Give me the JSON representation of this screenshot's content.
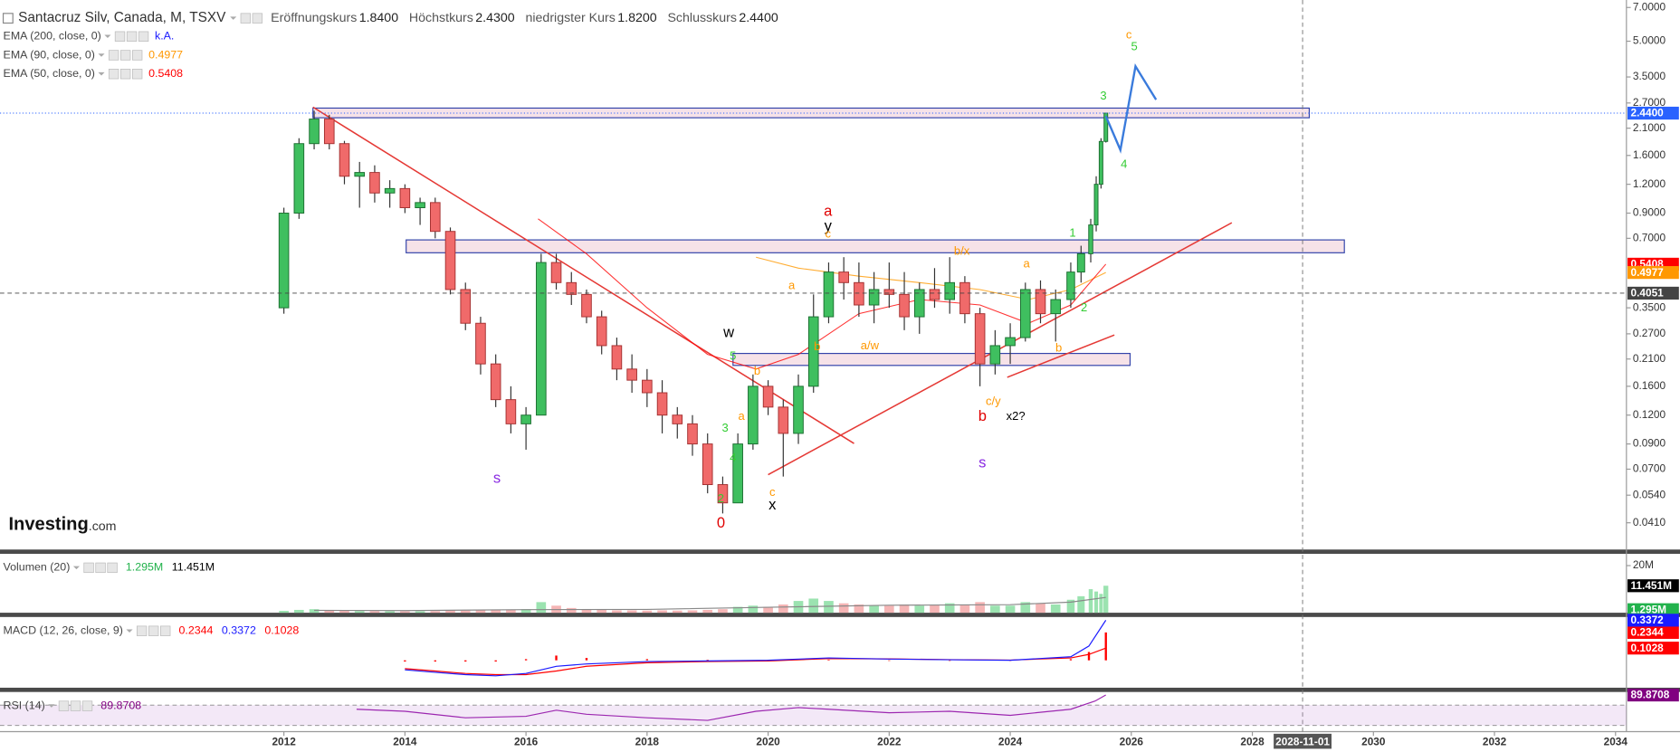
{
  "chart_data": {
    "type": "candlestick",
    "title": "Santacruz Silv, Canada, M, TSXV",
    "header": [
      {
        "name": "Eröffnungskurs",
        "label": "1.8400"
      },
      {
        "name": "Höchstkurs",
        "label": "2.4300"
      },
      {
        "name": "niedrigster Kurs",
        "label": "1.8200"
      },
      {
        "name": "Schlusskurs",
        "label": "2.4400"
      }
    ],
    "watermark": [
      "Investing",
      ".com"
    ],
    "up_color": "#3fbf5f",
    "down_color": "#f06a6a",
    "x": [
      2012.0,
      2012.25,
      2012.5,
      2012.75,
      2013.0,
      2013.25,
      2013.5,
      2013.75,
      2014.0,
      2014.25,
      2014.5,
      2014.75,
      2015.0,
      2015.25,
      2015.5,
      2015.75,
      2016.0,
      2016.25,
      2016.5,
      2016.75,
      2017.0,
      2017.25,
      2017.5,
      2017.75,
      2018.0,
      2018.25,
      2018.5,
      2018.75,
      2019.0,
      2019.25,
      2019.5,
      2019.75,
      2020.0,
      2020.25,
      2020.5,
      2020.75,
      2021.0,
      2021.25,
      2021.5,
      2021.75,
      2022.0,
      2022.25,
      2022.5,
      2022.75,
      2023.0,
      2023.25,
      2023.5,
      2023.75,
      2024.0,
      2024.25,
      2024.5,
      2024.75,
      2025.0,
      2025.17,
      2025.33,
      2025.42,
      2025.5,
      2025.58
    ],
    "open": [
      0.35,
      0.9,
      1.8,
      2.3,
      1.8,
      1.3,
      1.35,
      1.1,
      1.15,
      0.95,
      1.0,
      0.75,
      0.42,
      0.3,
      0.2,
      0.14,
      0.11,
      0.12,
      0.55,
      0.45,
      0.4,
      0.32,
      0.24,
      0.19,
      0.17,
      0.15,
      0.12,
      0.11,
      0.09,
      0.06,
      0.05,
      0.09,
      0.16,
      0.13,
      0.1,
      0.16,
      0.32,
      0.5,
      0.45,
      0.36,
      0.42,
      0.4,
      0.32,
      0.42,
      0.38,
      0.45,
      0.33,
      0.2,
      0.24,
      0.26,
      0.42,
      0.33,
      0.38,
      0.5,
      0.6,
      0.8,
      1.2,
      1.84
    ],
    "high": [
      0.95,
      1.9,
      2.5,
      2.4,
      1.85,
      1.5,
      1.45,
      1.25,
      1.2,
      1.05,
      1.05,
      0.78,
      0.45,
      0.32,
      0.22,
      0.16,
      0.13,
      0.6,
      0.6,
      0.5,
      0.42,
      0.34,
      0.26,
      0.22,
      0.19,
      0.17,
      0.13,
      0.12,
      0.1,
      0.065,
      0.1,
      0.18,
      0.17,
      0.14,
      0.18,
      0.4,
      0.55,
      0.58,
      0.55,
      0.5,
      0.55,
      0.5,
      0.45,
      0.52,
      0.58,
      0.48,
      0.35,
      0.28,
      0.3,
      0.45,
      0.46,
      0.42,
      0.55,
      0.65,
      0.85,
      1.3,
      1.9,
      2.43
    ],
    "low": [
      0.33,
      0.85,
      1.7,
      1.7,
      1.2,
      0.95,
      1.0,
      0.95,
      0.9,
      0.8,
      0.7,
      0.4,
      0.28,
      0.18,
      0.13,
      0.1,
      0.085,
      0.12,
      0.42,
      0.36,
      0.3,
      0.22,
      0.17,
      0.15,
      0.13,
      0.1,
      0.095,
      0.08,
      0.055,
      0.045,
      0.05,
      0.085,
      0.12,
      0.065,
      0.09,
      0.15,
      0.3,
      0.38,
      0.32,
      0.3,
      0.35,
      0.28,
      0.27,
      0.35,
      0.33,
      0.3,
      0.16,
      0.18,
      0.2,
      0.25,
      0.3,
      0.25,
      0.35,
      0.45,
      0.55,
      0.75,
      1.15,
      1.82
    ],
    "close": [
      0.9,
      1.8,
      2.3,
      1.8,
      1.3,
      1.35,
      1.1,
      1.15,
      0.95,
      1.0,
      0.75,
      0.42,
      0.3,
      0.2,
      0.14,
      0.11,
      0.12,
      0.55,
      0.45,
      0.4,
      0.32,
      0.24,
      0.19,
      0.17,
      0.15,
      0.12,
      0.11,
      0.09,
      0.06,
      0.05,
      0.09,
      0.16,
      0.13,
      0.1,
      0.16,
      0.32,
      0.5,
      0.45,
      0.36,
      0.42,
      0.4,
      0.32,
      0.42,
      0.38,
      0.45,
      0.33,
      0.2,
      0.24,
      0.26,
      0.42,
      0.33,
      0.38,
      0.5,
      0.6,
      0.8,
      1.2,
      1.84,
      2.44
    ],
    "xlim": [
      2007.31,
      2034.18
    ],
    "xticks": [
      2012,
      2014,
      2016,
      2018,
      2020,
      2022,
      2024,
      2026,
      2028,
      2030,
      2032,
      2034
    ],
    "ylim": [
      0.0314,
      7.54
    ],
    "log_y": true,
    "grid": false,
    "yticks": [
      {
        "value": 7,
        "label": "7.0000"
      },
      {
        "value": 5,
        "label": "5.0000"
      },
      {
        "value": 3.5,
        "label": "3.5000"
      },
      {
        "value": 2.7,
        "label": "2.7000"
      },
      {
        "value": 2.1,
        "label": "2.1000"
      },
      {
        "value": 1.6,
        "label": "1.6000"
      },
      {
        "value": 1.2,
        "label": "1.2000"
      },
      {
        "value": 0.9,
        "label": "0.9000"
      },
      {
        "value": 0.7,
        "label": "0.7000"
      },
      {
        "value": 0.35,
        "label": "0.3500"
      },
      {
        "value": 0.27,
        "label": "0.2700"
      },
      {
        "value": 0.21,
        "label": "0.2100"
      },
      {
        "value": 0.16,
        "label": "0.1600"
      },
      {
        "value": 0.12,
        "label": "0.1200"
      },
      {
        "value": 0.09,
        "label": "0.0900"
      },
      {
        "value": 0.07,
        "label": "0.0700"
      },
      {
        "value": 0.054,
        "label": "0.0540"
      },
      {
        "value": 0.041,
        "label": "0.0410"
      }
    ],
    "indicators": [
      {
        "name": "EMA (200, close, 0)",
        "label": "k.A.",
        "color": "#1a1aff"
      },
      {
        "name": "EMA (90, close, 0)",
        "label": "0.4977",
        "color": "#ff9800",
        "x": [
          2019.8,
          2020.5,
          2021.5,
          2022.5,
          2023.5,
          2024.3,
          2025.0,
          2025.58
        ],
        "values": [
          0.58,
          0.52,
          0.48,
          0.45,
          0.42,
          0.38,
          0.42,
          0.4977
        ]
      },
      {
        "name": "EMA (50, close, 0)",
        "label": "0.5408",
        "color": "#ff0000",
        "x": [
          2016.2,
          2017.0,
          2018.0,
          2019.0,
          2019.8,
          2020.5,
          2021.5,
          2022.5,
          2023.5,
          2024.3,
          2025.0,
          2025.58
        ],
        "values": [
          0.85,
          0.6,
          0.35,
          0.22,
          0.19,
          0.22,
          0.33,
          0.38,
          0.36,
          0.3,
          0.36,
          0.5408
        ]
      }
    ],
    "zones": [
      {
        "x": [
          2012.48,
          2028.94
        ],
        "values": [
          2.566,
          2.33
        ]
      },
      {
        "x": [
          2014.02,
          2029.52
        ],
        "values": [
          0.689,
          0.606
        ]
      },
      {
        "x": [
          2019.42,
          2025.98
        ],
        "values": [
          0.222,
          0.197
        ]
      }
    ],
    "trendlines": [
      {
        "x": [
          2012.48,
          2021.42
        ],
        "values": [
          2.59,
          0.0904
        ]
      },
      {
        "x": [
          2020.0,
          2027.66
        ],
        "values": [
          0.0663,
          0.818
        ]
      },
      {
        "x": [
          2023.95,
          2025.72
        ],
        "values": [
          0.175,
          0.267
        ]
      }
    ],
    "projection": {
      "color": "#3a7bdc",
      "x": [
        2025.58,
        2025.82,
        2026.07,
        2026.41
      ],
      "values": [
        2.37,
        1.69,
        3.89,
        2.79
      ]
    },
    "annotations": [
      {
        "text": "s",
        "x": 2015.52,
        "y": 0.0636,
        "color": "#8a2be2"
      },
      {
        "text": "0",
        "x": 2019.22,
        "y": 0.0406,
        "color": "#e00000"
      },
      {
        "text": "c",
        "x": 2020.07,
        "y": 0.0554,
        "color": "#ff9800"
      },
      {
        "text": "x",
        "x": 2020.07,
        "y": 0.0486,
        "color": "#000000"
      },
      {
        "text": "w",
        "x": 2019.35,
        "y": 0.272,
        "color": "#000000"
      },
      {
        "text": "a",
        "x": 2020.99,
        "y": 0.91,
        "color": "#e00000"
      },
      {
        "text": "y",
        "x": 2020.99,
        "y": 0.785,
        "color": "#000000"
      },
      {
        "text": "c",
        "x": 2020.99,
        "y": 0.726,
        "color": "#ff9800"
      },
      {
        "text": "b/x",
        "x": 2023.2,
        "y": 0.613,
        "color": "#ff9800"
      },
      {
        "text": "a/w",
        "x": 2021.68,
        "y": 0.239,
        "color": "#ff9800"
      },
      {
        "text": "c/y",
        "x": 2023.72,
        "y": 0.137,
        "color": "#ff9800"
      },
      {
        "text": "b",
        "x": 2023.54,
        "y": 0.118,
        "color": "#e00000"
      },
      {
        "text": "x2?",
        "x": 2024.09,
        "y": 0.118,
        "color": "#000000"
      },
      {
        "text": "s",
        "x": 2023.54,
        "y": 0.074,
        "color": "#8a2be2"
      },
      {
        "text": "3",
        "x": 2025.54,
        "y": 2.88,
        "color": "#33cc33"
      },
      {
        "text": "c",
        "x": 2025.96,
        "y": 5.3,
        "color": "#ff9800"
      },
      {
        "text": "5",
        "x": 2026.05,
        "y": 4.71,
        "color": "#33cc33"
      },
      {
        "text": "4",
        "x": 2025.88,
        "y": 1.456,
        "color": "#33cc33"
      },
      {
        "text": "1",
        "x": 2025.03,
        "y": 0.735,
        "color": "#33cc33"
      },
      {
        "text": "2",
        "x": 2025.22,
        "y": 0.348,
        "color": "#33cc33"
      },
      {
        "text": "a",
        "x": 2024.27,
        "y": 0.539,
        "color": "#ff9800"
      },
      {
        "text": "b",
        "x": 2024.8,
        "y": 0.233,
        "color": "#ff9800"
      },
      {
        "text": "a",
        "x": 2020.39,
        "y": 0.435,
        "color": "#ff9800"
      },
      {
        "text": "b",
        "x": 2020.81,
        "y": 0.237,
        "color": "#ff9800"
      },
      {
        "text": "a",
        "x": 2019.56,
        "y": 0.118,
        "color": "#ff9800"
      },
      {
        "text": "b",
        "x": 2019.82,
        "y": 0.185,
        "color": "#ff9800"
      },
      {
        "text": "2",
        "x": 2019.22,
        "y": 0.052,
        "color": "#33cc33"
      },
      {
        "text": "3",
        "x": 2019.29,
        "y": 0.105,
        "color": "#33cc33"
      },
      {
        "text": "4",
        "x": 2019.42,
        "y": 0.0778,
        "color": "#33cc33"
      },
      {
        "text": "5",
        "x": 2019.42,
        "y": 0.215,
        "color": "#33cc33"
      }
    ],
    "price_labels": [
      {
        "value": 2.44,
        "label": "2.4400",
        "color": "#2962ff",
        "line": "dotted"
      },
      {
        "value": 0.5408,
        "label": "0.5408",
        "color": "#ff0000"
      },
      {
        "value": 0.4977,
        "label": "0.4977",
        "color": "#ff9800"
      },
      {
        "value": 0.4051,
        "label": "0.4051",
        "color": "#444444",
        "line": "dashed"
      }
    ],
    "crosshair": {
      "x": 2028.83,
      "label": "2028-11-01"
    },
    "panels": [
      {
        "type": "volume",
        "name": "Volumen (20)",
        "ylim": [
          0,
          25
        ],
        "yticks": [
          {
            "value": 20,
            "label": "20M"
          }
        ],
        "values": [
          0.8,
          1.2,
          1.5,
          1.0,
          0.8,
          0.7,
          0.7,
          0.6,
          0.6,
          0.6,
          0.7,
          1.0,
          0.9,
          1.0,
          1.1,
          1.2,
          1.5,
          4.5,
          3.0,
          2.0,
          1.5,
          1.2,
          1.0,
          1.0,
          0.9,
          1.0,
          0.9,
          1.0,
          1.2,
          1.5,
          2.5,
          3.0,
          2.5,
          3.5,
          5.0,
          6.0,
          5.0,
          4.0,
          3.5,
          3.0,
          3.0,
          3.5,
          3.0,
          3.2,
          4.0,
          3.5,
          4.5,
          3.0,
          3.0,
          4.5,
          4.0,
          3.5,
          5.5,
          7.0,
          10.0,
          9.0,
          8.0,
          11.451
        ],
        "ma_x": [
          2012.5,
          2014.0,
          2016.0,
          2018.0,
          2020.0,
          2022.0,
          2024.0,
          2025.0,
          2025.58
        ],
        "ma_values": [
          1.0,
          0.9,
          1.3,
          1.4,
          2.3,
          3.2,
          3.4,
          4.5,
          6.5
        ],
        "readouts": [
          {
            "label": "1.295M",
            "value": 1.295,
            "color": "#22b24c"
          },
          {
            "label": "11.451M",
            "value": 11.451,
            "color": "#000000"
          }
        ]
      },
      {
        "type": "macd",
        "name": "MACD (12, 26, close, 9)",
        "ylim": [
          -0.23,
          0.364
        ],
        "x": [
          2014.0,
          2014.5,
          2015.0,
          2015.5,
          2016.0,
          2016.5,
          2017.0,
          2018.0,
          2019.0,
          2020.0,
          2021.0,
          2022.0,
          2023.0,
          2024.0,
          2025.0,
          2025.3,
          2025.58
        ],
        "macd": [
          -0.08,
          -0.1,
          -0.12,
          -0.13,
          -0.11,
          -0.05,
          -0.03,
          -0.01,
          -0.005,
          0.0,
          0.02,
          0.01,
          0.005,
          0.0,
          0.03,
          0.12,
          0.3372
        ],
        "signal": [
          -0.07,
          -0.09,
          -0.11,
          -0.12,
          -0.12,
          -0.09,
          -0.05,
          -0.02,
          -0.01,
          -0.005,
          0.015,
          0.012,
          0.006,
          0.002,
          0.02,
          0.05,
          0.1028
        ],
        "macd_color": "#1a1aff",
        "signal_color": "#ff0000",
        "readouts": [
          {
            "label": "0.2344",
            "value": 0.2344,
            "color": "#ff0000"
          },
          {
            "label": "0.3372",
            "value": 0.3372,
            "color": "#1a1aff"
          },
          {
            "label": "0.1028",
            "value": 0.1028,
            "color": "#ff0000"
          }
        ]
      },
      {
        "type": "rsi",
        "name": "RSI (14)",
        "ylim": [
          17.9,
          95.8
        ],
        "bands": [
          30,
          70
        ],
        "color": "#9c27b0",
        "x": [
          2013.2,
          2014.0,
          2015.0,
          2016.0,
          2016.5,
          2017.0,
          2018.0,
          2019.0,
          2019.8,
          2020.5,
          2021.0,
          2022.0,
          2023.0,
          2024.0,
          2025.0,
          2025.4,
          2025.58
        ],
        "values": [
          62,
          58,
          45,
          48,
          60,
          52,
          45,
          40,
          58,
          65,
          62,
          55,
          58,
          50,
          62,
          78,
          89.8708
        ],
        "readouts": [
          {
            "label": "89.8708",
            "value": 89.8708,
            "color": "#800080"
          }
        ]
      }
    ]
  }
}
